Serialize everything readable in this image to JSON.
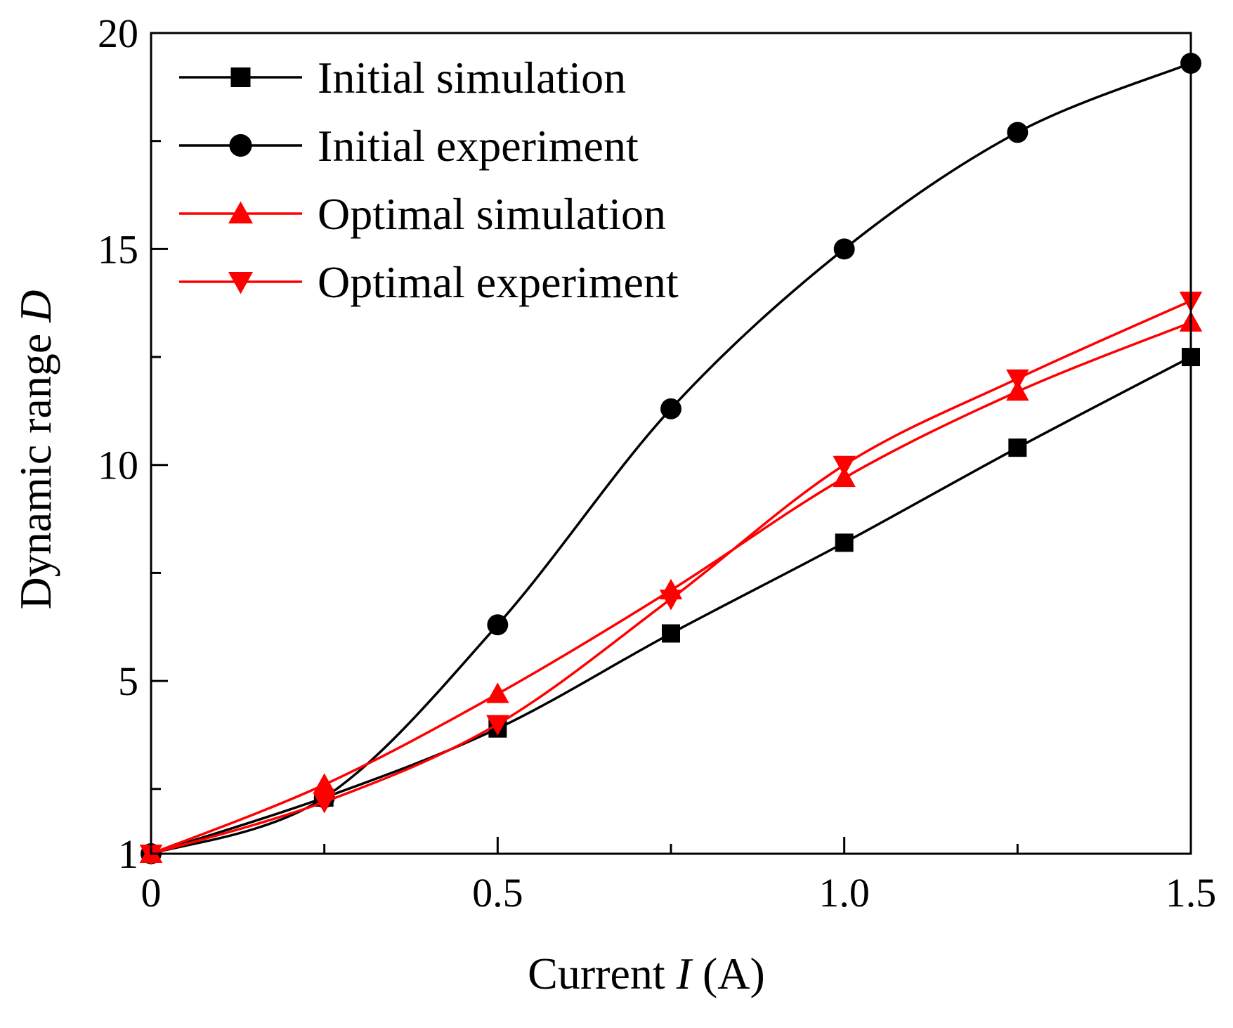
{
  "chart_data": {
    "type": "line",
    "title": "",
    "xlabel": {
      "prefix": "Current ",
      "var": "I",
      "suffix": " (A)"
    },
    "ylabel": {
      "prefix": "Dynamic range ",
      "var": "D"
    },
    "xlim": [
      0,
      1.5
    ],
    "ylim": [
      1,
      20
    ],
    "x_ticks": [
      {
        "value": 0,
        "label": "0"
      },
      {
        "value": 0.5,
        "label": "0.5"
      },
      {
        "value": 1.0,
        "label": "1.0"
      },
      {
        "value": 1.5,
        "label": "1.5"
      }
    ],
    "x_minor_ticks": [
      0.25,
      0.75,
      1.25
    ],
    "y_ticks": [
      {
        "value": 1,
        "label": "1"
      },
      {
        "value": 5,
        "label": "5"
      },
      {
        "value": 10,
        "label": "10"
      },
      {
        "value": 15,
        "label": "15"
      },
      {
        "value": 20,
        "label": "20"
      }
    ],
    "y_minor_ticks": [
      2.5,
      7.5,
      12.5,
      17.5
    ],
    "grid": false,
    "legend_position": "top-left",
    "x": [
      0,
      0.25,
      0.5,
      0.75,
      1.0,
      1.25,
      1.5
    ],
    "series": [
      {
        "name": "Initial simulation",
        "color": "#000000",
        "marker": "square",
        "values": [
          1.0,
          2.3,
          3.9,
          6.1,
          8.2,
          10.4,
          12.5
        ]
      },
      {
        "name": "Initial experiment",
        "color": "#000000",
        "marker": "circle",
        "values": [
          1.0,
          2.3,
          6.3,
          11.3,
          15.0,
          17.7,
          19.3
        ]
      },
      {
        "name": "Optimal simulation",
        "color": "#ff0000",
        "marker": "triangle-up",
        "values": [
          1.0,
          2.6,
          4.7,
          7.1,
          9.7,
          11.7,
          13.3
        ]
      },
      {
        "name": "Optimal experiment",
        "color": "#ff0000",
        "marker": "triangle-down",
        "values": [
          1.0,
          2.2,
          4.0,
          6.9,
          10.0,
          12.0,
          13.8
        ]
      }
    ]
  }
}
